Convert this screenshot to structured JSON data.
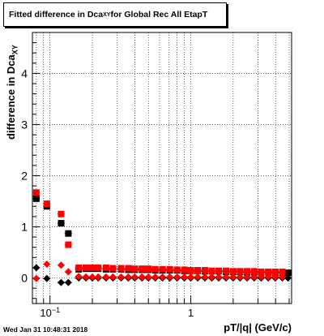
{
  "header": {
    "title_main": "Fitted difference in Dca",
    "title_sub": "XY",
    "title_rest": " for Global Rec All EtapT"
  },
  "axes": {
    "ylabel_main": "difference in Dca",
    "ylabel_sub": "XY",
    "xlabel": "pT/|q| (GeV/c)"
  },
  "footer": {
    "timestamp": "Wed Jan 31 10:48:31 2018"
  },
  "chart_data": {
    "type": "scatter",
    "title": "Fitted difference in DcaXY for Global Rec All EtapT",
    "xlabel": "pT/|q| (GeV/c)",
    "ylabel": "difference in DcaXY",
    "xscale": "log",
    "xlim": [
      0.075,
      5.2
    ],
    "ylim": [
      -0.5,
      4.8
    ],
    "grid": true,
    "y_ticks": [
      0,
      1,
      2,
      3,
      4
    ],
    "x_tick_labels": [
      "10^-1",
      "1"
    ],
    "series": [
      {
        "marker": "square",
        "color": "#000000",
        "x": [
          0.08,
          0.095,
          0.12,
          0.135,
          0.16,
          0.18,
          0.2,
          0.22,
          0.25,
          0.28,
          0.32,
          0.36,
          0.4,
          0.45,
          0.5,
          0.56,
          0.63,
          0.71,
          0.8,
          0.9,
          1.0,
          1.12,
          1.26,
          1.41,
          1.58,
          1.78,
          2.0,
          2.24,
          2.51,
          2.82,
          3.16,
          3.55,
          3.98,
          4.47,
          4.9
        ],
        "y": [
          1.55,
          1.4,
          1.07,
          0.87,
          0.17,
          0.18,
          0.18,
          0.18,
          0.17,
          0.17,
          0.17,
          0.16,
          0.16,
          0.16,
          0.16,
          0.15,
          0.15,
          0.15,
          0.15,
          0.14,
          0.14,
          0.14,
          0.13,
          0.13,
          0.13,
          0.12,
          0.12,
          0.12,
          0.11,
          0.11,
          0.11,
          0.11,
          0.1,
          0.1,
          0.1
        ]
      },
      {
        "marker": "square",
        "color": "#ff0000",
        "x": [
          0.08,
          0.095,
          0.12,
          0.135,
          0.16,
          0.18,
          0.2,
          0.22,
          0.25,
          0.28,
          0.32,
          0.36,
          0.4,
          0.45,
          0.5,
          0.56,
          0.63,
          0.71,
          0.8,
          0.9,
          1.0,
          1.12,
          1.26,
          1.41,
          1.58,
          1.78,
          2.0,
          2.24,
          2.51,
          2.82,
          3.16,
          3.55,
          3.98,
          4.47
        ],
        "y": [
          1.67,
          1.45,
          1.25,
          0.65,
          0.2,
          0.2,
          0.2,
          0.2,
          0.2,
          0.19,
          0.19,
          0.19,
          0.18,
          0.18,
          0.18,
          0.17,
          0.17,
          0.17,
          0.16,
          0.16,
          0.15,
          0.15,
          0.15,
          0.14,
          0.14,
          0.14,
          0.13,
          0.13,
          0.13,
          0.13,
          0.12,
          0.12,
          0.12,
          0.12
        ]
      },
      {
        "marker": "diamond",
        "color": "#000000",
        "x": [
          0.08,
          0.095,
          0.12,
          0.135,
          0.16,
          0.18,
          0.2,
          0.22,
          0.25,
          0.28,
          0.32,
          0.36,
          0.4,
          0.45,
          0.5,
          0.56,
          0.63,
          0.71,
          0.8,
          0.9,
          1.0,
          1.12,
          1.26,
          1.41,
          1.58,
          1.78,
          2.0,
          2.24,
          2.51,
          2.82,
          3.16,
          3.55,
          3.98,
          4.47,
          4.9
        ],
        "y": [
          0.2,
          -0.01,
          -0.09,
          -0.09,
          0.0,
          0.0,
          0.0,
          0.0,
          0.0,
          0.0,
          0.0,
          0.0,
          0.0,
          0.0,
          0.0,
          0.0,
          0.0,
          0.0,
          0.0,
          0.0,
          0.0,
          0.0,
          0.0,
          0.0,
          0.0,
          0.0,
          0.0,
          0.0,
          0.0,
          0.0,
          0.0,
          0.0,
          0.0,
          0.0,
          0.0
        ]
      },
      {
        "marker": "diamond",
        "color": "#ff0000",
        "x": [
          0.08,
          0.095,
          0.12,
          0.135,
          0.16,
          0.18,
          0.2,
          0.22,
          0.25,
          0.28,
          0.32,
          0.36,
          0.4,
          0.45,
          0.5,
          0.56,
          0.63,
          0.71,
          0.8,
          0.9,
          1.0,
          1.12,
          1.26,
          1.41,
          1.58,
          1.78,
          2.0,
          2.24,
          2.51,
          2.82,
          3.16,
          3.55,
          3.98,
          4.47
        ],
        "y": [
          -0.01,
          0.27,
          0.25,
          0.12,
          0.03,
          0.02,
          0.02,
          0.02,
          0.02,
          0.02,
          0.02,
          0.02,
          0.02,
          0.02,
          0.02,
          0.02,
          0.02,
          0.02,
          0.02,
          0.02,
          0.02,
          0.02,
          0.02,
          0.02,
          0.02,
          0.02,
          0.02,
          0.02,
          0.02,
          0.02,
          0.02,
          0.02,
          0.02,
          0.02
        ]
      }
    ]
  }
}
